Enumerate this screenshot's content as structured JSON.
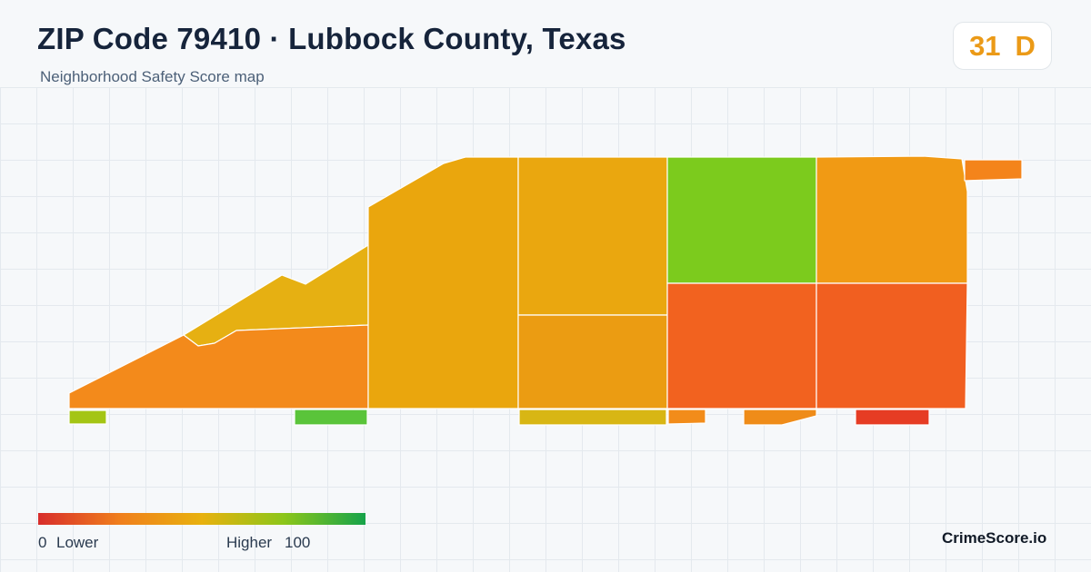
{
  "header": {
    "title": "ZIP Code 79410 · Lubbock County, Texas",
    "subtitle": "Neighborhood Safety Score map"
  },
  "score": {
    "value": "31",
    "grade": "D",
    "color": "#eb9a17"
  },
  "legend": {
    "low_value": "0",
    "low_label": "Lower",
    "high_label": "Higher",
    "high_value": "100",
    "colors": [
      "#d82d2b",
      "#f07f1c",
      "#e8b10e",
      "#8cc61a",
      "#16a34a"
    ]
  },
  "brand": "CrimeScore.io",
  "map": {
    "region_colors": {
      "west_upper_strip": "#e6b012",
      "west_lower_band": "#f38a1b",
      "central_west_block": "#eaa60d",
      "central_upper_block": "#eaa70f",
      "central_lower_block": "#eb9c12",
      "northeast_green_block": "#7ccb1d",
      "northeast_orange_block": "#f19a14",
      "southeast_left_block": "#f2621f",
      "southeast_right_block": "#f15f20",
      "far_east_tab": "#f4841b",
      "south_tab_1": "#a4c514",
      "south_tab_2": "#5ac43a",
      "south_tab_3": "#d8b614",
      "south_tab_4": "#f28c1a",
      "south_tab_5": "#ef8c19",
      "south_tab_6": "#e63c24"
    }
  }
}
